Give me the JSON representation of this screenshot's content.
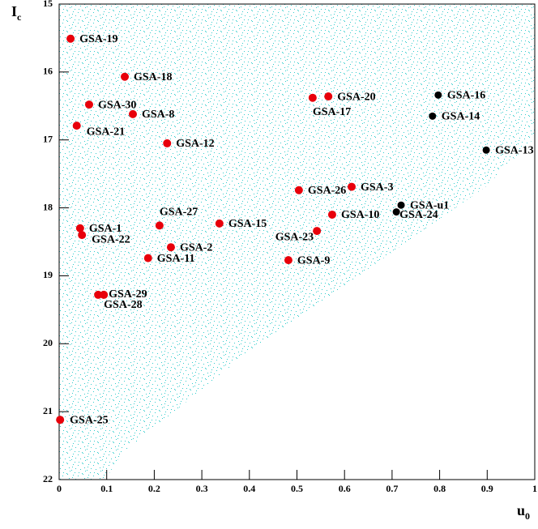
{
  "chart_data": {
    "type": "scatter",
    "xlabel": "u",
    "xlabel_sub": "0",
    "ylabel": "I",
    "ylabel_sub": "c",
    "xlim": [
      0,
      1
    ],
    "ylim": [
      22,
      15
    ],
    "y_inverted": true,
    "xticks": [
      0,
      0.1,
      0.2,
      0.3,
      0.4,
      0.5,
      0.6,
      0.7,
      0.8,
      0.9,
      1
    ],
    "yticks": [
      15,
      16,
      17,
      18,
      19,
      20,
      21,
      22
    ],
    "series": [
      {
        "color": "#e8000b",
        "labels": [
          "GSA-19",
          "GSA-18",
          "GSA-30",
          "GSA-8",
          "GSA-21",
          "GSA-12",
          "GSA-20",
          "GSA-17",
          "GSA-3",
          "GSA-26",
          "GSA-10",
          "GSA-23",
          "GSA-15",
          "GSA-27",
          "GSA-1",
          "GSA-22",
          "GSA-2",
          "GSA-11",
          "GSA-9",
          "GSA-29",
          "GSA-28",
          "GSA-25"
        ],
        "x": [
          0.024,
          0.138,
          0.063,
          0.155,
          0.037,
          0.227,
          0.566,
          0.533,
          0.615,
          0.504,
          0.574,
          0.542,
          0.337,
          0.211,
          0.044,
          0.048,
          0.235,
          0.187,
          0.482,
          0.082,
          0.094,
          0.002
        ],
        "values": [
          15.51,
          16.07,
          16.48,
          16.62,
          16.79,
          17.05,
          16.36,
          16.38,
          17.69,
          17.74,
          18.1,
          18.34,
          18.23,
          18.26,
          18.3,
          18.4,
          18.58,
          18.74,
          18.77,
          19.28,
          19.28,
          21.12
        ]
      },
      {
        "color": "#000000",
        "labels": [
          "GSA-16",
          "GSA-14",
          "GSA-13",
          "GSA-u1",
          "GSA-24"
        ],
        "x": [
          0.797,
          0.785,
          0.898,
          0.719,
          0.709
        ],
        "values": [
          16.34,
          16.65,
          17.15,
          17.96,
          18.06
        ]
      }
    ]
  }
}
